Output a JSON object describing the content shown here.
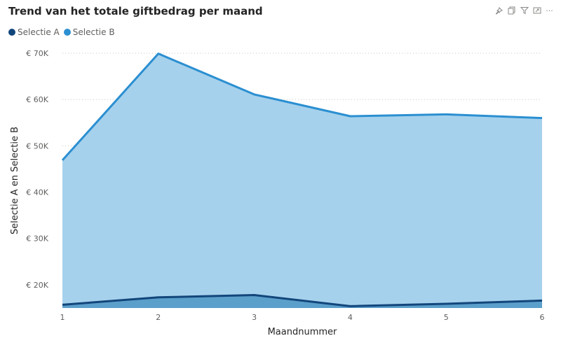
{
  "toolbar": {
    "icons": [
      "pin-icon",
      "copy-icon",
      "filter-icon",
      "focus-mode-icon",
      "more-options-icon"
    ],
    "more_glyph": "···"
  },
  "chart_data": {
    "type": "area",
    "title": "Trend van het totale giftbedrag per maand",
    "xlabel": "Maandnummer",
    "ylabel": "Selectie A en Selectie B",
    "x": [
      1,
      2,
      3,
      4,
      5,
      6
    ],
    "xticks": [
      "1",
      "2",
      "3",
      "4",
      "5",
      "6"
    ],
    "ylim": [
      15000,
      70000
    ],
    "yticks": [
      {
        "value": 20000,
        "label": "€ 20K"
      },
      {
        "value": 30000,
        "label": "€ 30K"
      },
      {
        "value": 40000,
        "label": "€ 40K"
      },
      {
        "value": 50000,
        "label": "€ 50K"
      },
      {
        "value": 60000,
        "label": "€ 60K"
      },
      {
        "value": 70000,
        "label": "€ 70K"
      }
    ],
    "grid": true,
    "legend_position": "top-left",
    "series": [
      {
        "name": "Selectie A",
        "values": [
          15700,
          17300,
          17800,
          15400,
          15900,
          16600
        ],
        "color": "#12467b",
        "fill": "#5b9fcb"
      },
      {
        "name": "Selectie B",
        "values": [
          46900,
          69900,
          61100,
          56400,
          56800,
          56000
        ],
        "color": "#2b8fd1",
        "fill": "#a6d1ec"
      }
    ]
  }
}
